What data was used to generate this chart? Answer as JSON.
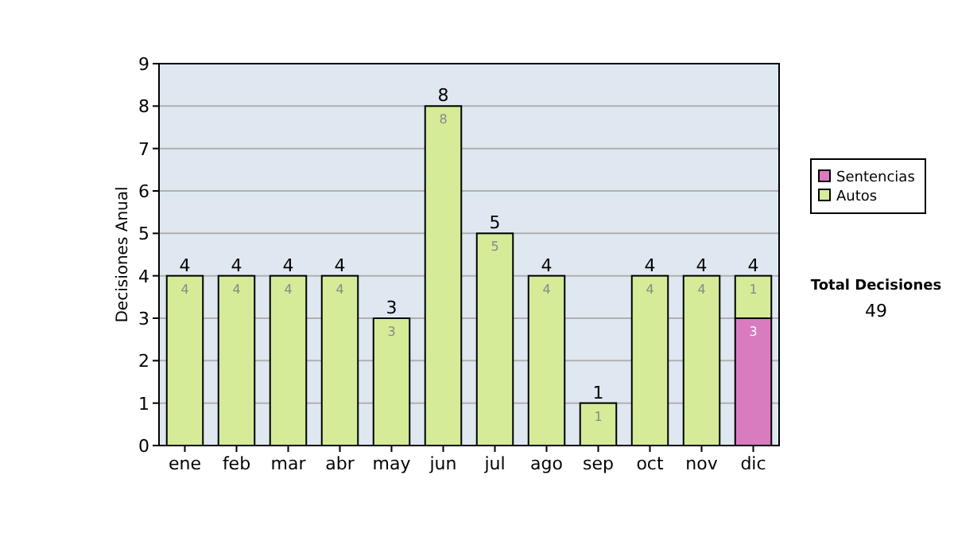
{
  "chart_data": {
    "type": "bar",
    "stacked": true,
    "ylabel": "Decisiones Anual",
    "categories": [
      "ene",
      "feb",
      "mar",
      "abr",
      "may",
      "jun",
      "jul",
      "ago",
      "sep",
      "oct",
      "nov",
      "dic"
    ],
    "series": [
      {
        "name": "Sentencias",
        "color": "#d97bbf",
        "values": [
          0,
          0,
          0,
          0,
          0,
          0,
          0,
          0,
          0,
          0,
          0,
          3
        ],
        "value_labels": [
          null,
          null,
          null,
          null,
          null,
          null,
          null,
          null,
          null,
          null,
          null,
          "3"
        ]
      },
      {
        "name": "Autos",
        "color": "#d5eb98",
        "values": [
          4,
          4,
          4,
          4,
          3,
          8,
          5,
          4,
          1,
          4,
          4,
          1
        ],
        "value_labels": [
          "4",
          "4",
          "4",
          "4",
          "3",
          "8",
          "5",
          "4",
          "1",
          "4",
          "4",
          "1"
        ]
      }
    ],
    "totals": [
      "4",
      "4",
      "4",
      "4",
      "3",
      "8",
      "5",
      "4",
      "1",
      "4",
      "4",
      "4"
    ],
    "ylim": [
      0,
      9
    ],
    "yticks": [
      0,
      1,
      2,
      3,
      4,
      5,
      6,
      7,
      8,
      9
    ],
    "grid": "y",
    "legend": "right",
    "annotations": [
      "Total Decisiones",
      "49"
    ]
  }
}
